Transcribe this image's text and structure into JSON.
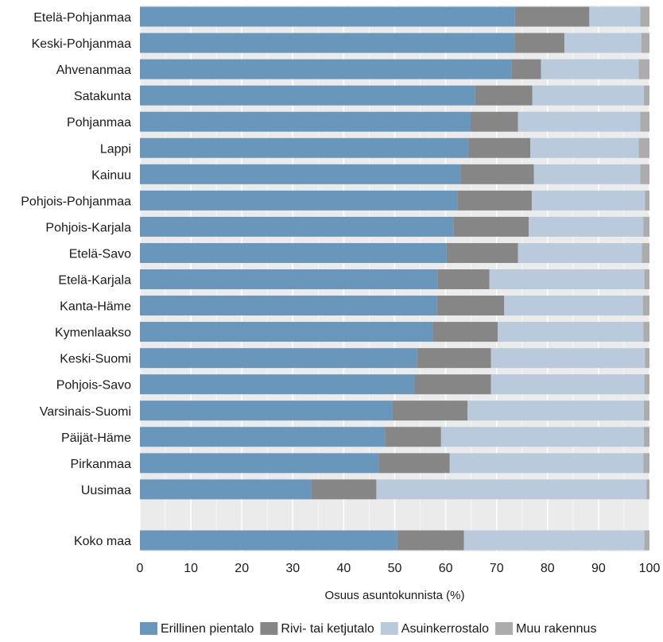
{
  "chart_data": {
    "type": "bar",
    "orientation": "horizontal",
    "stacked": true,
    "xlabel": "Osuus asuntokunnista (%)",
    "ylabel": "",
    "xlim": [
      0,
      100
    ],
    "xticks": [
      "0",
      "10",
      "20",
      "30",
      "40",
      "50",
      "60",
      "70",
      "80",
      "90",
      "100"
    ],
    "grid": true,
    "legend_position": "bottom",
    "categories": [
      "Etelä-Pohjanmaa",
      "Keski-Pohjanmaa",
      "Ahvenanmaa",
      "Satakunta",
      "Pohjanmaa",
      "Lappi",
      "Kainuu",
      "Pohjois-Pohjanmaa",
      "Pohjois-Karjala",
      "Etelä-Savo",
      "Etelä-Karjala",
      "Kanta-Häme",
      "Kymenlaakso",
      "Keski-Suomi",
      "Pohjois-Savo",
      "Varsinais-Suomi",
      "Päijät-Häme",
      "Pirkanmaa",
      "Uusimaa",
      "Koko maa"
    ],
    "series": [
      {
        "name": "Erillinen pientalo",
        "color": "#6897bb",
        "values": [
          73.6,
          73.5,
          72.9,
          65.8,
          64.9,
          64.4,
          62.9,
          62.3,
          61.5,
          60.2,
          58.4,
          58.3,
          57.5,
          54.4,
          53.9,
          49.6,
          48.1,
          46.9,
          33.6,
          50.5
        ]
      },
      {
        "name": "Rivi- tai ketjutalo",
        "color": "#868686",
        "values": [
          14.6,
          9.8,
          5.8,
          11.2,
          9.3,
          12.2,
          14.4,
          14.6,
          14.8,
          14.0,
          10.2,
          13.2,
          12.7,
          14.5,
          15.0,
          14.7,
          11.0,
          13.9,
          12.8,
          13.1
        ]
      },
      {
        "name": "Asuinkerrostalo",
        "color": "#b8cadb",
        "values": [
          10.0,
          15.1,
          19.2,
          21.9,
          24.0,
          21.3,
          20.9,
          22.2,
          22.5,
          24.3,
          30.4,
          27.2,
          28.6,
          30.2,
          30.1,
          34.6,
          39.8,
          38.0,
          53.0,
          35.4
        ]
      },
      {
        "name": "Muu rakennus",
        "color": "#acacac",
        "values": [
          1.8,
          1.6,
          2.1,
          1.1,
          1.8,
          2.1,
          1.8,
          0.9,
          1.2,
          1.5,
          1.0,
          1.3,
          1.2,
          0.9,
          1.0,
          1.1,
          1.1,
          1.2,
          0.6,
          1.0
        ]
      }
    ]
  }
}
